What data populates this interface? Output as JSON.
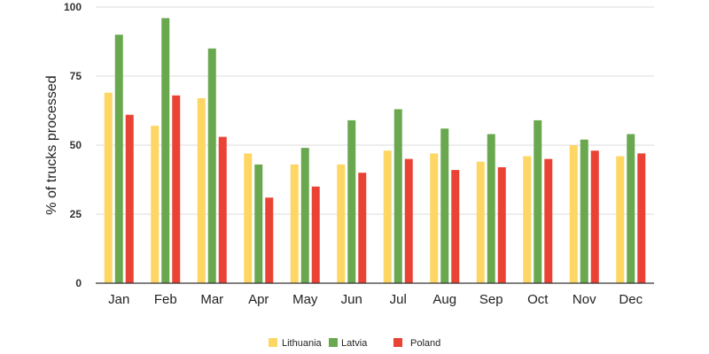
{
  "chart_data": {
    "type": "bar",
    "ylabel": "% of trucks processed",
    "ylim": [
      0,
      100
    ],
    "yticks": [
      0,
      25,
      50,
      75,
      100
    ],
    "grid": true,
    "legend_position": "bottom",
    "categories": [
      "Jan",
      "Feb",
      "Mar",
      "Apr",
      "May",
      "Jun",
      "Jul",
      "Aug",
      "Sep",
      "Oct",
      "Nov",
      "Dec"
    ],
    "series": [
      {
        "name": "Lithuania",
        "color": "#fdd663",
        "values": [
          69,
          57,
          67,
          47,
          43,
          43,
          48,
          47,
          44,
          46,
          50,
          46
        ]
      },
      {
        "name": "Latvia",
        "color": "#6aa84f",
        "values": [
          90,
          96,
          85,
          43,
          49,
          59,
          63,
          56,
          54,
          59,
          52,
          54
        ]
      },
      {
        "name": "Poland",
        "color": "#ea4335",
        "values": [
          61,
          68,
          53,
          31,
          35,
          40,
          45,
          41,
          42,
          45,
          48,
          47
        ]
      }
    ]
  }
}
